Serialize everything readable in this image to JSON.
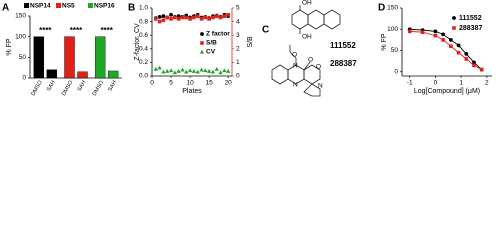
{
  "chart_data": [
    {
      "type": "bar",
      "panel": "A",
      "ylabel": "% FP",
      "ylim": [
        0,
        150
      ],
      "yticks": [
        0,
        50,
        100,
        150
      ],
      "categories": [
        "DMSO",
        "SAH"
      ],
      "series": [
        {
          "name": "NSP14",
          "color": "#000000",
          "values": [
            100,
            20
          ],
          "annotation": "****"
        },
        {
          "name": "NS5",
          "color": "#e0201b",
          "values": [
            100,
            15
          ],
          "annotation": "****"
        },
        {
          "name": "NSP16",
          "color": "#1fa824",
          "values": [
            100,
            17
          ],
          "annotation": "****"
        }
      ]
    },
    {
      "type": "scatter",
      "panel": "B",
      "xlabel": "Plates",
      "ylabel": "Z-factor, CV",
      "y2label": "S/B",
      "xlim": [
        0,
        21
      ],
      "xticks": [
        0,
        5,
        10,
        15,
        20
      ],
      "ylim": [
        0,
        1
      ],
      "yticks": [
        {
          "value": 0,
          "label": "0.0"
        },
        {
          "value": 0.2,
          "label": "0.2"
        },
        {
          "value": 0.4,
          "label": "0.4"
        },
        {
          "value": 0.6,
          "label": "0.6"
        },
        {
          "value": 0.8,
          "label": "0.8"
        },
        {
          "value": 1,
          "label": "1.0"
        }
      ],
      "y2lim": [
        0,
        5
      ],
      "y2ticks": [
        0,
        1,
        2,
        3,
        4,
        5
      ],
      "x": [
        1,
        2,
        3,
        4,
        5,
        6,
        7,
        8,
        9,
        10,
        11,
        12,
        13,
        14,
        15,
        16,
        17,
        18,
        19,
        20
      ],
      "series": [
        {
          "name": "Z factor",
          "color": "#000000",
          "marker": "circle",
          "values": [
            0.85,
            0.87,
            0.88,
            0.86,
            0.9,
            0.87,
            0.88,
            0.87,
            0.89,
            0.86,
            0.88,
            0.9,
            0.86,
            0.87,
            0.85,
            0.88,
            0.89,
            0.87,
            0.9,
            0.88
          ]
        },
        {
          "name": "S/B",
          "color": "#e0201b",
          "marker": "square",
          "axis": "y2",
          "values": [
            4.2,
            4.0,
            4.1,
            4.3,
            4.2,
            4.3,
            4.2,
            4.3,
            4.3,
            4.2,
            4.3,
            4.4,
            4.2,
            4.3,
            4.2,
            4.3,
            4.4,
            4.3,
            4.4,
            4.5
          ]
        },
        {
          "name": "CV",
          "color": "#1fa824",
          "marker": "triangle",
          "values": [
            0.1,
            0.12,
            0.06,
            0.07,
            0.08,
            0.05,
            0.07,
            0.09,
            0.06,
            0.08,
            0.07,
            0.06,
            0.09,
            0.08,
            0.07,
            0.06,
            0.1,
            0.05,
            0.08,
            0.07
          ]
        }
      ]
    },
    {
      "type": "line",
      "panel": "D",
      "xlabel": "Log[Compound] (μM)",
      "ylabel": "% FP",
      "xlim": [
        -1.3,
        2.2
      ],
      "xticks": [
        -1,
        0,
        1,
        2
      ],
      "ylim": [
        -10,
        150
      ],
      "yticks": [
        0,
        50,
        100,
        150
      ],
      "x": [
        -1,
        -0.5,
        0,
        0.3,
        0.6,
        0.9,
        1.2,
        1.5,
        1.8
      ],
      "series": [
        {
          "name": "111552",
          "color": "#000000",
          "marker": "circle",
          "values": [
            100,
            98,
            95,
            88,
            75,
            62,
            42,
            22,
            5
          ]
        },
        {
          "name": "288387",
          "color": "#e0201b",
          "marker": "square",
          "values": [
            95,
            93,
            85,
            75,
            60,
            45,
            30,
            15,
            5
          ]
        }
      ]
    }
  ],
  "structures": {
    "panel": "C",
    "compounds": [
      "111552",
      "288387"
    ],
    "atoms": [
      "OH",
      "OH",
      "O",
      "O",
      "N",
      "N",
      "N",
      "O"
    ]
  }
}
